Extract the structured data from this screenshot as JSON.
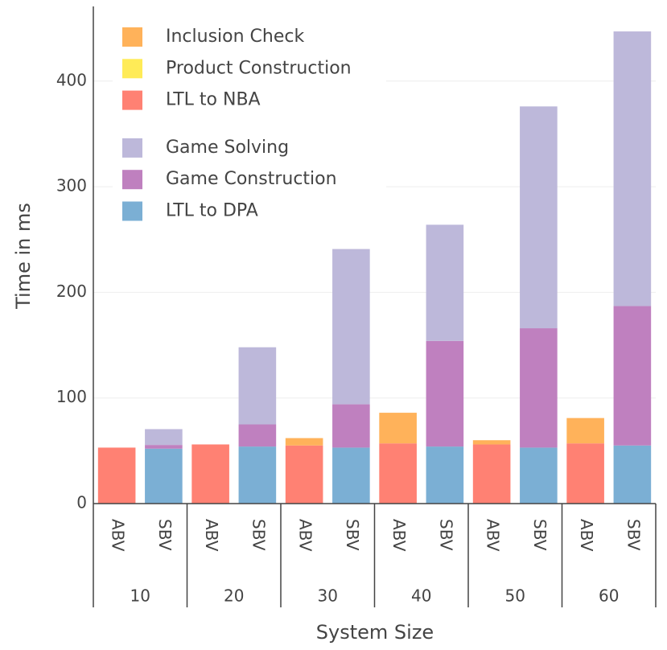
{
  "chart_data": {
    "type": "stacked_bar",
    "xlabel": "System Size",
    "ylabel": "Time in ms",
    "categories": [
      "ABV",
      "SBV",
      "ABV",
      "SBV",
      "ABV",
      "SBV",
      "ABV",
      "SBV",
      "ABV",
      "SBV",
      "ABV",
      "SBV"
    ],
    "groups": [
      10,
      20,
      30,
      40,
      50,
      60
    ],
    "series": [
      {
        "name": "LTL to NBA",
        "color": "#ff8173",
        "values": [
          53,
          null,
          56,
          null,
          55,
          null,
          57,
          null,
          56,
          null,
          57,
          null
        ]
      },
      {
        "name": "Product Construction",
        "color": "#ffeb57",
        "values": [
          0,
          null,
          0,
          null,
          0,
          null,
          0,
          null,
          0,
          null,
          0,
          null
        ]
      },
      {
        "name": "Inclusion Check",
        "color": "#ffb25a",
        "values": [
          0,
          null,
          0,
          null,
          7,
          null,
          29,
          null,
          4,
          null,
          24,
          null
        ]
      },
      {
        "name": "LTL to DPA",
        "color": "#7bafd4",
        "values": [
          null,
          52,
          null,
          54,
          null,
          53,
          null,
          54,
          null,
          53,
          null,
          55
        ]
      },
      {
        "name": "Game Construction",
        "color": "#bf80bf",
        "values": [
          null,
          3.5,
          null,
          21,
          null,
          41,
          null,
          100,
          null,
          113,
          null,
          132
        ]
      },
      {
        "name": "Game Solving",
        "color": "#bdb8da",
        "values": [
          null,
          15,
          null,
          73,
          null,
          147,
          null,
          110,
          null,
          210,
          null,
          260
        ]
      }
    ],
    "ylim": [
      0,
      460
    ],
    "yticks": [
      0,
      100,
      200,
      300,
      400
    ],
    "grid": true
  }
}
